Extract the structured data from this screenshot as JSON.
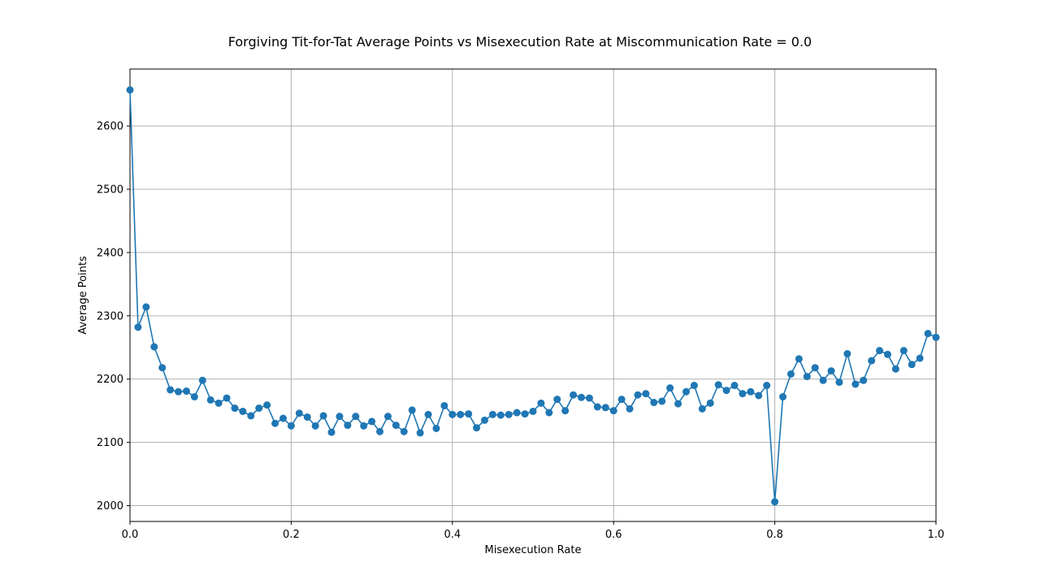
{
  "chart_data": {
    "type": "line",
    "title": "Forgiving Tit-for-Tat Average Points vs Misexecution Rate at Miscommunication Rate = 0.0",
    "xlabel": "Misexecution Rate",
    "ylabel": "Average Points",
    "xlim": [
      0.0,
      1.0
    ],
    "ylim": [
      1975,
      2690
    ],
    "x_ticks": [
      0.0,
      0.2,
      0.4,
      0.6,
      0.8,
      1.0
    ],
    "x_tick_labels": [
      "0.0",
      "0.2",
      "0.4",
      "0.6",
      "0.8",
      "1.0"
    ],
    "y_ticks": [
      2000,
      2100,
      2200,
      2300,
      2400,
      2500,
      2600
    ],
    "y_tick_labels": [
      "2000",
      "2100",
      "2200",
      "2300",
      "2400",
      "2500",
      "2600"
    ],
    "grid": true,
    "legend": "none",
    "series": [
      {
        "color": "#1f77b4",
        "marker": "circle",
        "x": [
          0.0,
          0.01,
          0.02,
          0.03,
          0.04,
          0.05,
          0.06,
          0.07,
          0.08,
          0.09,
          0.1,
          0.11,
          0.12,
          0.13,
          0.14,
          0.15,
          0.16,
          0.17,
          0.18,
          0.19,
          0.2,
          0.21,
          0.22,
          0.23,
          0.24,
          0.25,
          0.26,
          0.27,
          0.28,
          0.29,
          0.3,
          0.31,
          0.32,
          0.33,
          0.34,
          0.35,
          0.36,
          0.37,
          0.38,
          0.39,
          0.4,
          0.41,
          0.42,
          0.43,
          0.44,
          0.45,
          0.46,
          0.47,
          0.48,
          0.49,
          0.5,
          0.51,
          0.52,
          0.53,
          0.54,
          0.55,
          0.56,
          0.57,
          0.58,
          0.59,
          0.6,
          0.61,
          0.62,
          0.63,
          0.64,
          0.65,
          0.66,
          0.67,
          0.68,
          0.69,
          0.7,
          0.71,
          0.72,
          0.73,
          0.74,
          0.75,
          0.76,
          0.77,
          0.78,
          0.79,
          0.8,
          0.81,
          0.82,
          0.83,
          0.84,
          0.85,
          0.86,
          0.87,
          0.88,
          0.89,
          0.9,
          0.91,
          0.92,
          0.93,
          0.94,
          0.95,
          0.96,
          0.97,
          0.98,
          0.99,
          1.0
        ],
        "values": [
          2657,
          2282,
          2314,
          2251,
          2218,
          2183,
          2180,
          2181,
          2172,
          2198,
          2167,
          2162,
          2170,
          2154,
          2149,
          2142,
          2154,
          2159,
          2130,
          2138,
          2126,
          2146,
          2140,
          2126,
          2142,
          2116,
          2141,
          2127,
          2141,
          2126,
          2133,
          2117,
          2141,
          2127,
          2117,
          2151,
          2115,
          2144,
          2122,
          2158,
          2144,
          2144,
          2145,
          2123,
          2135,
          2144,
          2143,
          2144,
          2147,
          2145,
          2149,
          2162,
          2147,
          2168,
          2150,
          2175,
          2171,
          2170,
          2156,
          2155,
          2150,
          2168,
          2153,
          2175,
          2177,
          2163,
          2165,
          2186,
          2161,
          2180,
          2190,
          2153,
          2162,
          2191,
          2182,
          2190,
          2177,
          2180,
          2174,
          2190,
          2006,
          2172,
          2208,
          2232,
          2204,
          2218,
          2198,
          2213,
          2195,
          2240,
          2192,
          2198,
          2229,
          2245,
          2239,
          2216,
          2245,
          2223,
          2233,
          2272,
          2266
        ]
      }
    ]
  }
}
